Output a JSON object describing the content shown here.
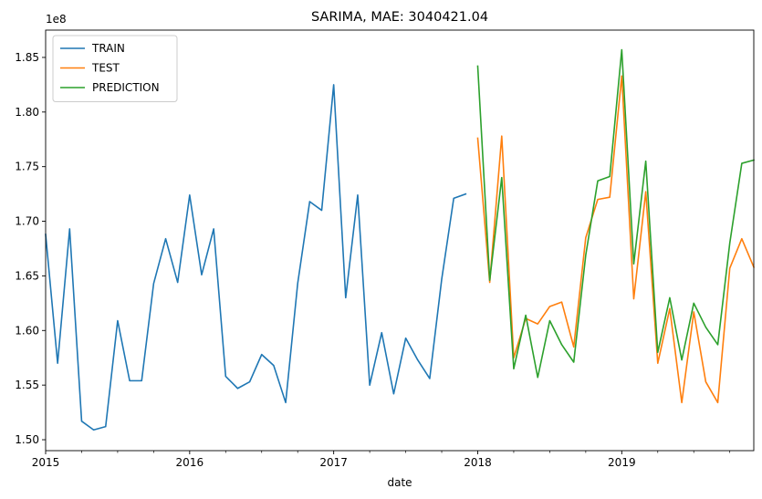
{
  "chart_data": {
    "type": "line",
    "title": "SARIMA, MAE: 3040421.04",
    "xlabel": "date",
    "ylabel": "",
    "y_scale_label": "1e8",
    "y_unit_multiplier": 100000000,
    "ylim": [
      1.49,
      1.875
    ],
    "yticks": [
      1.5,
      1.55,
      1.6,
      1.65,
      1.7,
      1.75,
      1.8,
      1.85
    ],
    "ytick_labels": [
      "1.50",
      "1.55",
      "1.60",
      "1.65",
      "1.70",
      "1.75",
      "1.80",
      "1.85"
    ],
    "xlim": [
      "2015-01",
      "2019-12"
    ],
    "xticks": [
      "2015-01",
      "2016-01",
      "2017-01",
      "2018-01",
      "2019-01"
    ],
    "xtick_labels": [
      "2015",
      "2016",
      "2017",
      "2018",
      "2019"
    ],
    "grid": false,
    "legend_position": "top-left",
    "series": [
      {
        "name": "TRAIN",
        "color": "#1f77b4",
        "x": [
          "2015-01",
          "2015-02",
          "2015-03",
          "2015-04",
          "2015-05",
          "2015-06",
          "2015-07",
          "2015-08",
          "2015-09",
          "2015-10",
          "2015-11",
          "2015-12",
          "2016-01",
          "2016-02",
          "2016-03",
          "2016-04",
          "2016-05",
          "2016-06",
          "2016-07",
          "2016-08",
          "2016-09",
          "2016-10",
          "2016-11",
          "2016-12",
          "2017-01",
          "2017-02",
          "2017-03",
          "2017-04",
          "2017-05",
          "2017-06",
          "2017-07",
          "2017-08",
          "2017-09",
          "2017-10",
          "2017-11",
          "2017-12"
        ],
        "values": [
          1.688,
          1.57,
          1.693,
          1.517,
          1.509,
          1.512,
          1.609,
          1.554,
          1.554,
          1.643,
          1.684,
          1.644,
          1.724,
          1.651,
          1.693,
          1.558,
          1.547,
          1.553,
          1.578,
          1.568,
          1.534,
          1.643,
          1.718,
          1.71,
          1.825,
          1.63,
          1.724,
          1.55,
          1.598,
          1.542,
          1.593,
          1.573,
          1.556,
          1.647,
          1.721,
          1.725
        ]
      },
      {
        "name": "TEST",
        "color": "#ff7f0e",
        "x": [
          "2018-01",
          "2018-02",
          "2018-03",
          "2018-04",
          "2018-05",
          "2018-06",
          "2018-07",
          "2018-08",
          "2018-09",
          "2018-10",
          "2018-11",
          "2018-12",
          "2019-01",
          "2019-02",
          "2019-03",
          "2019-04",
          "2019-05",
          "2019-06",
          "2019-07",
          "2019-08",
          "2019-09",
          "2019-10",
          "2019-11",
          "2019-12"
        ],
        "values": [
          1.776,
          1.644,
          1.778,
          1.575,
          1.611,
          1.606,
          1.622,
          1.626,
          1.585,
          1.685,
          1.72,
          1.722,
          1.833,
          1.629,
          1.727,
          1.57,
          1.62,
          1.534,
          1.617,
          1.553,
          1.534,
          1.657,
          1.684,
          1.658
        ]
      },
      {
        "name": "PREDICTION",
        "color": "#2ca02c",
        "x": [
          "2018-01",
          "2018-02",
          "2018-03",
          "2018-04",
          "2018-05",
          "2018-06",
          "2018-07",
          "2018-08",
          "2018-09",
          "2018-10",
          "2018-11",
          "2018-12",
          "2019-01",
          "2019-02",
          "2019-03",
          "2019-04",
          "2019-05",
          "2019-06",
          "2019-07",
          "2019-08",
          "2019-09",
          "2019-10",
          "2019-11",
          "2019-12"
        ],
        "values": [
          1.842,
          1.646,
          1.74,
          1.565,
          1.614,
          1.557,
          1.609,
          1.587,
          1.571,
          1.669,
          1.737,
          1.741,
          1.857,
          1.661,
          1.755,
          1.58,
          1.63,
          1.573,
          1.625,
          1.603,
          1.587,
          1.68,
          1.753,
          1.756
        ]
      }
    ]
  }
}
